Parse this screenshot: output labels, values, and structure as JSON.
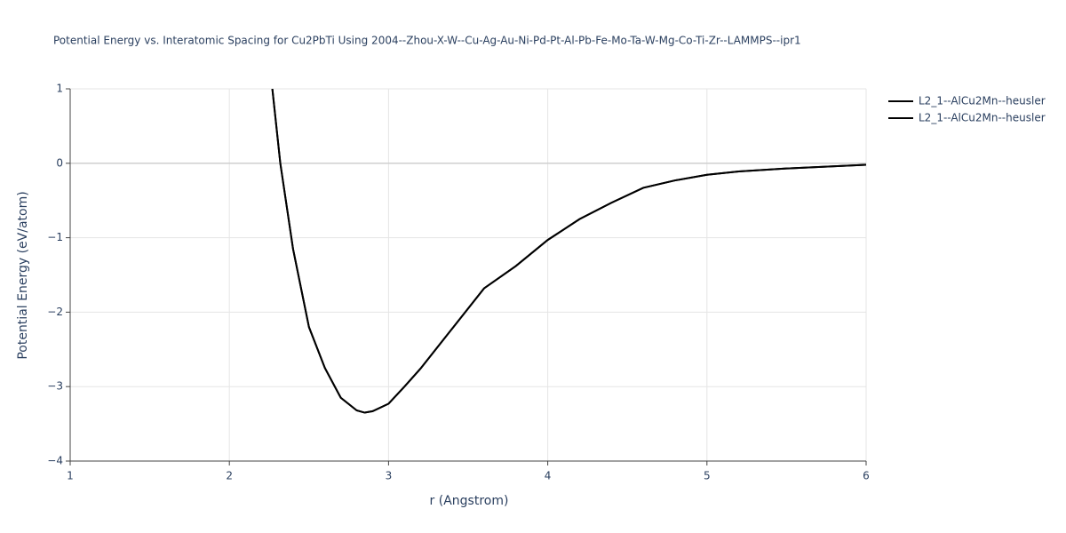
{
  "chart_data": {
    "type": "line",
    "title": "Potential Energy vs. Interatomic Spacing for Cu2PbTi Using 2004--Zhou-X-W--Cu-Ag-Au-Ni-Pd-Pt-Al-Pb-Fe-Mo-Ta-W-Mg-Co-Ti-Zr--LAMMPS--ipr1",
    "x_label": "r (Angstrom)",
    "y_label": "Potential Energy (eV/atom)",
    "xlim": [
      1,
      6
    ],
    "xticks": [
      1,
      2,
      3,
      4,
      5,
      6
    ],
    "ylim": [
      -4,
      1
    ],
    "yticks": [
      {
        "value": -4,
        "label": "−4"
      },
      {
        "value": -3,
        "label": "−3"
      },
      {
        "value": -2,
        "label": "−2"
      },
      {
        "value": -1,
        "label": "−1"
      },
      0,
      1
    ],
    "grid": true,
    "legend": "right",
    "series": [
      {
        "name": "L2_1--AlCu2Mn--heusler",
        "color": "#000000",
        "x": [
          2.27,
          2.32,
          2.4,
          2.5,
          2.6,
          2.7,
          2.8,
          2.85,
          2.9,
          3.0,
          3.1,
          3.2,
          3.4,
          3.6,
          3.8,
          4.0,
          4.2,
          4.4,
          4.6,
          4.8,
          5.0,
          5.2,
          5.5,
          6.0
        ],
        "values": [
          1.0,
          0.0,
          -1.15,
          -2.2,
          -2.75,
          -3.15,
          -3.32,
          -3.35,
          -3.33,
          -3.23,
          -3.0,
          -2.76,
          -2.22,
          -1.68,
          -1.38,
          -1.03,
          -0.75,
          -0.53,
          -0.33,
          -0.23,
          -0.155,
          -0.11,
          -0.07,
          -0.02
        ]
      },
      {
        "name": "L2_1--AlCu2Mn--heusler",
        "color": "#000000",
        "x": [
          2.27,
          2.32,
          2.4,
          2.5,
          2.6,
          2.7,
          2.8,
          2.85,
          2.9,
          3.0,
          3.1,
          3.2,
          3.4,
          3.6,
          3.8,
          4.0,
          4.2,
          4.4,
          4.6,
          4.8,
          5.0,
          5.2,
          5.5,
          6.0
        ],
        "values": [
          1.0,
          0.0,
          -1.15,
          -2.2,
          -2.75,
          -3.15,
          -3.32,
          -3.35,
          -3.33,
          -3.23,
          -3.0,
          -2.76,
          -2.22,
          -1.68,
          -1.38,
          -1.03,
          -0.75,
          -0.53,
          -0.33,
          -0.23,
          -0.155,
          -0.11,
          -0.07,
          -0.02
        ]
      }
    ]
  }
}
